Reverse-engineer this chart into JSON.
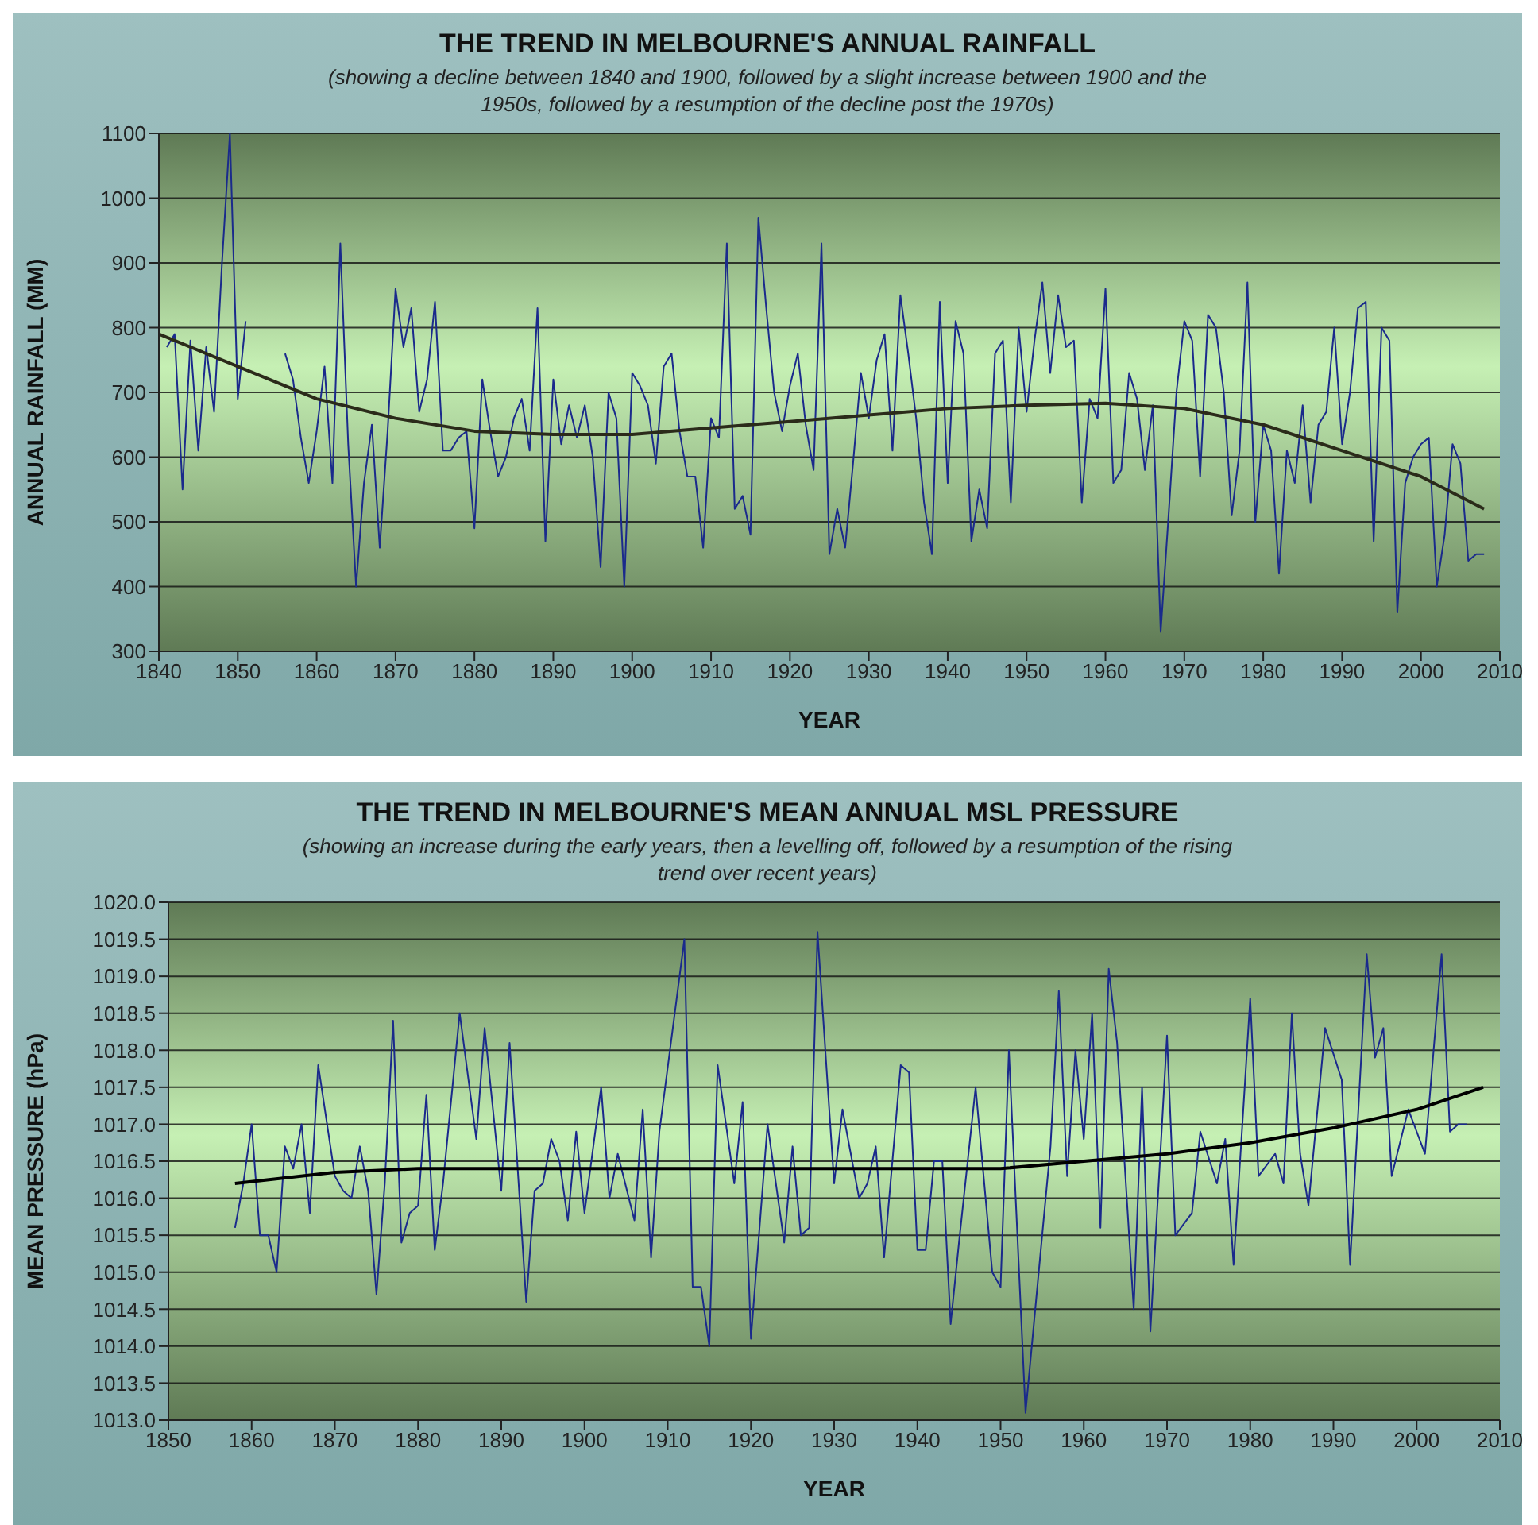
{
  "chart_data": [
    {
      "type": "line",
      "title": "THE TREND IN MELBOURNE'S ANNUAL RAINFALL",
      "subtitle": "(showing a decline between 1840 and 1900, followed by a slight increase between 1900 and the 1950s, followed by a resumption of the decline post the 1970s)",
      "xlabel": "YEAR",
      "ylabel": "ANNUAL RAINFALL (MM)",
      "xlim": [
        1840,
        2010
      ],
      "xticks": [
        1840,
        1850,
        1860,
        1870,
        1880,
        1890,
        1900,
        1910,
        1920,
        1930,
        1940,
        1950,
        1960,
        1970,
        1980,
        1990,
        2000,
        2010
      ],
      "ylim": [
        300,
        1100
      ],
      "yticks": [
        300,
        400,
        500,
        600,
        700,
        800,
        900,
        1000,
        1100
      ],
      "grid": "y",
      "marker": "none",
      "line_style": "solid",
      "series": [
        {
          "color": "#1a2a8c",
          "x": [
            1841,
            1842,
            1843,
            1844,
            1845,
            1846,
            1847,
            1848,
            1849,
            1850,
            1851,
            1853,
            1856,
            1857,
            1858,
            1859,
            1860,
            1861,
            1862,
            1863,
            1864,
            1865,
            1866,
            1867,
            1868,
            1869,
            1870,
            1871,
            1872,
            1873,
            1874,
            1875,
            1876,
            1877,
            1878,
            1879,
            1880,
            1881,
            1882,
            1883,
            1884,
            1885,
            1886,
            1887,
            1888,
            1889,
            1890,
            1891,
            1892,
            1893,
            1894,
            1895,
            1896,
            1897,
            1898,
            1899,
            1900,
            1901,
            1902,
            1903,
            1904,
            1905,
            1906,
            1907,
            1908,
            1909,
            1910,
            1911,
            1912,
            1913,
            1914,
            1915,
            1916,
            1917,
            1918,
            1919,
            1920,
            1921,
            1922,
            1923,
            1924,
            1925,
            1926,
            1927,
            1928,
            1929,
            1930,
            1931,
            1932,
            1933,
            1934,
            1935,
            1936,
            1937,
            1938,
            1939,
            1940,
            1941,
            1942,
            1943,
            1944,
            1945,
            1946,
            1947,
            1948,
            1949,
            1950,
            1951,
            1952,
            1953,
            1954,
            1955,
            1956,
            1957,
            1958,
            1959,
            1960,
            1961,
            1962,
            1963,
            1964,
            1965,
            1966,
            1967,
            1968,
            1969,
            1970,
            1971,
            1972,
            1973,
            1974,
            1975,
            1976,
            1977,
            1978,
            1979,
            1980,
            1981,
            1982,
            1983,
            1984,
            1985,
            1986,
            1987,
            1988,
            1989,
            1990,
            1991,
            1992,
            1993,
            1994,
            1995,
            1996,
            1997,
            1998,
            1999,
            2000,
            2001,
            2002,
            2003,
            2004,
            2005,
            2006,
            2007,
            2008
          ],
          "values": [
            770,
            790,
            550,
            780,
            610,
            770,
            670,
            900,
            1100,
            690,
            810,
            null,
            760,
            720,
            630,
            560,
            640,
            740,
            560,
            930,
            620,
            400,
            560,
            650,
            460,
            640,
            860,
            770,
            830,
            670,
            720,
            840,
            610,
            610,
            630,
            640,
            490,
            720,
            640,
            570,
            600,
            660,
            690,
            610,
            830,
            470,
            720,
            620,
            680,
            630,
            680,
            600,
            430,
            700,
            660,
            400,
            730,
            710,
            680,
            590,
            740,
            760,
            640,
            570,
            570,
            460,
            660,
            630,
            930,
            520,
            540,
            480,
            970,
            830,
            700,
            640,
            710,
            760,
            650,
            580,
            930,
            450,
            520,
            460,
            590,
            730,
            660,
            750,
            790,
            610,
            850,
            760,
            660,
            530,
            450,
            840,
            560,
            810,
            760,
            470,
            550,
            490,
            760,
            780,
            530,
            800,
            670,
            780,
            870,
            730,
            850,
            770,
            780,
            530,
            690,
            660,
            860,
            560,
            580,
            730,
            690,
            580,
            680,
            330,
            510,
            700,
            810,
            780,
            570,
            820,
            800,
            700,
            510,
            610,
            870,
            500,
            650,
            610,
            420,
            610,
            560,
            680,
            530,
            650,
            670,
            800,
            620,
            700,
            830,
            840,
            470,
            800,
            780,
            360,
            560,
            600,
            620,
            630,
            400,
            480,
            620,
            590,
            440,
            450,
            450
          ]
        },
        {
          "type": "line",
          "color": "#2b2b1a",
          "x": [
            1840,
            1850,
            1860,
            1870,
            1880,
            1890,
            1900,
            1910,
            1920,
            1930,
            1940,
            1950,
            1960,
            1970,
            1980,
            1990,
            2000,
            2008
          ],
          "values": [
            790,
            740,
            690,
            660,
            640,
            635,
            635,
            645,
            655,
            665,
            675,
            680,
            683,
            675,
            650,
            610,
            570,
            520
          ]
        }
      ]
    },
    {
      "type": "line",
      "title": "THE TREND IN MELBOURNE'S MEAN ANNUAL MSL PRESSURE",
      "subtitle": "(showing an increase during the early years, then a levelling off, followed by a resumption of the rising trend over recent years)",
      "xlabel": "YEAR",
      "ylabel": "MEAN PRESSURE (hPa)",
      "xlim": [
        1850,
        2010
      ],
      "xticks": [
        1850,
        1860,
        1870,
        1880,
        1890,
        1900,
        1910,
        1920,
        1930,
        1940,
        1950,
        1960,
        1970,
        1980,
        1990,
        2000,
        2010
      ],
      "ylim": [
        1013,
        1020
      ],
      "yticks": [
        {
          "value": 1013,
          "label": "1013.0"
        },
        {
          "value": 1013.5,
          "label": "1013.5"
        },
        {
          "value": 1014,
          "label": "1014.0"
        },
        {
          "value": 1014.5,
          "label": "1014.5"
        },
        {
          "value": 1015,
          "label": "1015.0"
        },
        {
          "value": 1015.5,
          "label": "1015.5"
        },
        {
          "value": 1016,
          "label": "1016.0"
        },
        {
          "value": 1016.5,
          "label": "1016.5"
        },
        {
          "value": 1017,
          "label": "1017.0"
        },
        {
          "value": 1017.5,
          "label": "1017.5"
        },
        {
          "value": 1018,
          "label": "1018.0"
        },
        {
          "value": 1018.5,
          "label": "1018.5"
        },
        {
          "value": 1019,
          "label": "1019.0"
        },
        {
          "value": 1019.5,
          "label": "1019.5"
        },
        {
          "value": 1020,
          "label": "1020.0"
        }
      ],
      "grid": "y",
      "marker": "none",
      "line_style": "solid",
      "series": [
        {
          "color": "#1a2a8c",
          "x": [
            1858,
            1859,
            1860,
            1861,
            1862,
            1863,
            1864,
            1865,
            1866,
            1867,
            1868,
            1870,
            1871,
            1872,
            1873,
            1874,
            1875,
            1876,
            1877,
            1878,
            1879,
            1880,
            1881,
            1882,
            1883,
            1885,
            1887,
            1888,
            1890,
            1891,
            1893,
            1894,
            1895,
            1896,
            1897,
            1898,
            1899,
            1900,
            1902,
            1903,
            1904,
            1906,
            1907,
            1908,
            1909,
            1912,
            1913,
            1914,
            1915,
            1916,
            1918,
            1919,
            1920,
            1922,
            1924,
            1925,
            1926,
            1927,
            1928,
            1930,
            1931,
            1933,
            1934,
            1935,
            1936,
            1938,
            1939,
            1940,
            1941,
            1942,
            1943,
            1944,
            1945,
            1947,
            1949,
            1950,
            1951,
            1953,
            1955,
            1956,
            1957,
            1958,
            1959,
            1960,
            1961,
            1962,
            1963,
            1964,
            1966,
            1967,
            1968,
            1970,
            1971,
            1973,
            1974,
            1976,
            1977,
            1978,
            1980,
            1981,
            1983,
            1984,
            1985,
            1986,
            1987,
            1989,
            1991,
            1992,
            1994,
            1995,
            1996,
            1997,
            1999,
            2001,
            2003,
            2004,
            2005,
            2006
          ],
          "values": [
            1015.6,
            1016.2,
            1017.0,
            1015.5,
            1015.5,
            1015.0,
            1016.7,
            1016.4,
            1017.0,
            1015.8,
            1017.8,
            1016.3,
            1016.1,
            1016.0,
            1016.7,
            1016.1,
            1014.7,
            1016.2,
            1018.4,
            1015.4,
            1015.8,
            1015.9,
            1017.4,
            1015.3,
            1016.2,
            1018.5,
            1016.8,
            1018.3,
            1016.1,
            1018.1,
            1014.6,
            1016.1,
            1016.2,
            1016.8,
            1016.5,
            1015.7,
            1016.9,
            1015.8,
            1017.5,
            1016.0,
            1016.6,
            1015.7,
            1017.2,
            1015.2,
            1016.9,
            1019.5,
            1014.8,
            1014.8,
            1014.0,
            1017.8,
            1016.2,
            1017.3,
            1014.1,
            1017.0,
            1015.4,
            1016.7,
            1015.5,
            1015.6,
            1019.6,
            1016.2,
            1017.2,
            1016.0,
            1016.2,
            1016.7,
            1015.2,
            1017.8,
            1017.7,
            1015.3,
            1015.3,
            1016.5,
            1016.5,
            1014.3,
            1015.4,
            1017.5,
            1015.0,
            1014.8,
            1018.0,
            1013.1,
            1015.5,
            1016.7,
            1018.8,
            1016.3,
            1018.0,
            1016.8,
            1018.5,
            1015.6,
            1019.1,
            1018.1,
            1014.5,
            1017.5,
            1014.2,
            1018.2,
            1015.5,
            1015.8,
            1016.9,
            1016.2,
            1016.8,
            1015.1,
            1018.7,
            1016.3,
            1016.6,
            1016.2,
            1018.5,
            1016.6,
            1015.9,
            1018.3,
            1017.6,
            1015.1,
            1019.3,
            1017.9,
            1018.3,
            1016.3,
            1017.2,
            1016.6,
            1019.3,
            1016.9,
            1017.0,
            1017.0
          ]
        },
        {
          "type": "line",
          "color": "#000000",
          "x": [
            1858,
            1870,
            1880,
            1900,
            1930,
            1950,
            1960,
            1970,
            1980,
            1990,
            2000,
            2008
          ],
          "values": [
            1016.2,
            1016.35,
            1016.4,
            1016.4,
            1016.4,
            1016.4,
            1016.5,
            1016.6,
            1016.75,
            1016.95,
            1017.2,
            1017.5
          ]
        }
      ]
    }
  ]
}
